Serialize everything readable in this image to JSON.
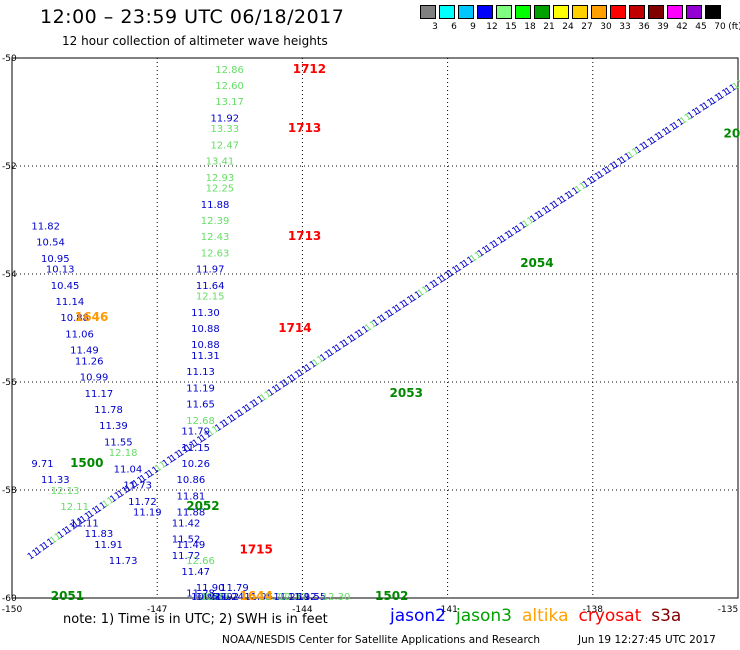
{
  "header": {
    "title": "12:00  – 23:59 UTC 06/18/2017",
    "subtitle": "12 hour collection of altimeter wave heights"
  },
  "legend": {
    "unit": "(ft)",
    "bins": [
      {
        "label": "3",
        "color": "#808080"
      },
      {
        "label": "6",
        "color": "#00ffff"
      },
      {
        "label": "9",
        "color": "#00c8ff"
      },
      {
        "label": "12",
        "color": "#0000ff"
      },
      {
        "label": "15",
        "color": "#80ff80"
      },
      {
        "label": "18",
        "color": "#00ff00"
      },
      {
        "label": "21",
        "color": "#00a000"
      },
      {
        "label": "24",
        "color": "#ffff00"
      },
      {
        "label": "27",
        "color": "#ffd000"
      },
      {
        "label": "30",
        "color": "#ffa000"
      },
      {
        "label": "33",
        "color": "#ff0000"
      },
      {
        "label": "36",
        "color": "#c00000"
      },
      {
        "label": "39",
        "color": "#800000"
      },
      {
        "label": "42",
        "color": "#ff00ff"
      },
      {
        "label": "45",
        "color": "#9400d3"
      },
      {
        "label": "70",
        "color": "#000000"
      }
    ]
  },
  "footer": {
    "note": "note: 1) Time is in UTC; 2) SWH is in feet",
    "satellites": [
      {
        "name": "jason2",
        "color": "#0000ff"
      },
      {
        "name": "jason3",
        "color": "#00a000"
      },
      {
        "name": "altika",
        "color": "#ffa000"
      },
      {
        "name": "cryosat",
        "color": "#ff0000"
      },
      {
        "name": "s3a",
        "color": "#800000"
      }
    ],
    "credit": "NOAA/NESDIS Center for Satellite Applications and Research",
    "timestamp": "Jun 19 12:27:45 UTC 2017"
  },
  "colors": {
    "jason2": "#0000cc",
    "jason3_light": "#66dd66",
    "jason3_time": "#008800",
    "cryosat": "#ff0000",
    "altika": "#ff9900"
  },
  "chart_data": {
    "type": "scatter",
    "xlim": [
      -150,
      -135
    ],
    "ylim": [
      -60,
      -50
    ],
    "x_ticks": [
      "-150",
      "-147",
      "-144",
      "-141",
      "-138",
      "-135"
    ],
    "y_ticks": [
      "-50",
      "-52",
      "-54",
      "-56",
      "-58",
      "-60"
    ],
    "grid": true,
    "tracks": [
      {
        "satellite": "cryosat",
        "color": "#ff0000",
        "times": [
          {
            "label": "1712",
            "x": -144.2,
            "y": -50.2
          },
          {
            "label": "1713",
            "x": -144.3,
            "y": -51.3
          },
          {
            "label": "1713",
            "x": -144.3,
            "y": -53.3
          },
          {
            "label": "1714",
            "x": -144.5,
            "y": -55.0
          },
          {
            "label": "1715",
            "x": -145.3,
            "y": -59.1
          }
        ],
        "values": [
          {
            "v": "12.86",
            "x": -145.8,
            "y": -50.2,
            "c": "l"
          },
          {
            "v": "12.60",
            "x": -145.8,
            "y": -50.5,
            "c": "l"
          },
          {
            "v": "13.17",
            "x": -145.8,
            "y": -50.8,
            "c": "l"
          },
          {
            "v": "11.92",
            "x": -145.9,
            "y": -51.1,
            "c": "b"
          },
          {
            "v": "13.33",
            "x": -145.9,
            "y": -51.3,
            "c": "l"
          },
          {
            "v": "12.47",
            "x": -145.9,
            "y": -51.6,
            "c": "l"
          },
          {
            "v": "13.41",
            "x": -146.0,
            "y": -51.9,
            "c": "l"
          },
          {
            "v": "12.93",
            "x": -146.0,
            "y": -52.2,
            "c": "l"
          },
          {
            "v": "12.25",
            "x": -146.0,
            "y": -52.4,
            "c": "l"
          },
          {
            "v": "11.88",
            "x": -146.1,
            "y": -52.7,
            "c": "b"
          },
          {
            "v": "12.39",
            "x": -146.1,
            "y": -53.0,
            "c": "l"
          },
          {
            "v": "12.43",
            "x": -146.1,
            "y": -53.3,
            "c": "l"
          },
          {
            "v": "12.63",
            "x": -146.1,
            "y": -53.6,
            "c": "l"
          },
          {
            "v": "11.97",
            "x": -146.2,
            "y": -53.9,
            "c": "b"
          },
          {
            "v": "11.64",
            "x": -146.2,
            "y": -54.2,
            "c": "b"
          },
          {
            "v": "12.15",
            "x": -146.2,
            "y": -54.4,
            "c": "l"
          },
          {
            "v": "11.30",
            "x": -146.3,
            "y": -54.7,
            "c": "b"
          },
          {
            "v": "10.88",
            "x": -146.3,
            "y": -55.0,
            "c": "b"
          },
          {
            "v": "10.88",
            "x": -146.3,
            "y": -55.3,
            "c": "b"
          },
          {
            "v": "11.31",
            "x": -146.3,
            "y": -55.5,
            "c": "b"
          },
          {
            "v": "11.13",
            "x": -146.4,
            "y": -55.8,
            "c": "b"
          },
          {
            "v": "11.19",
            "x": -146.4,
            "y": -56.1,
            "c": "b"
          },
          {
            "v": "11.65",
            "x": -146.4,
            "y": -56.4,
            "c": "b"
          },
          {
            "v": "12.68",
            "x": -146.4,
            "y": -56.7,
            "c": "l"
          },
          {
            "v": "11.79",
            "x": -146.5,
            "y": -56.9,
            "c": "b"
          },
          {
            "v": "11.15",
            "x": -146.5,
            "y": -57.2,
            "c": "b"
          },
          {
            "v": "10.26",
            "x": -146.5,
            "y": -57.5,
            "c": "b"
          },
          {
            "v": "10.86",
            "x": -146.6,
            "y": -57.8,
            "c": "b"
          },
          {
            "v": "11.81",
            "x": -146.6,
            "y": -58.1,
            "c": "b"
          },
          {
            "v": "11.88",
            "x": -146.6,
            "y": -58.4,
            "c": "b"
          },
          {
            "v": "11.42",
            "x": -146.7,
            "y": -58.6,
            "c": "b"
          },
          {
            "v": "11.52",
            "x": -146.7,
            "y": -58.9,
            "c": "b"
          },
          {
            "v": "11.72",
            "x": -146.7,
            "y": -59.2,
            "c": "b"
          }
        ]
      },
      {
        "satellite": "jason2",
        "color": "#0000ff",
        "values": [
          {
            "v": "11.82",
            "x": -149.6,
            "y": -53.1,
            "c": "b"
          },
          {
            "v": "10.54",
            "x": -149.5,
            "y": -53.4,
            "c": "b"
          },
          {
            "v": "10.95",
            "x": -149.4,
            "y": -53.7,
            "c": "b"
          },
          {
            "v": "10.13",
            "x": -149.3,
            "y": -53.9,
            "c": "b"
          },
          {
            "v": "10.45",
            "x": -149.2,
            "y": -54.2,
            "c": "b"
          },
          {
            "v": "11.14",
            "x": -149.1,
            "y": -54.5,
            "c": "b"
          },
          {
            "v": "10.88",
            "x": -149.0,
            "y": -54.8,
            "c": "b"
          },
          {
            "v": "11.06",
            "x": -148.9,
            "y": -55.1,
            "c": "b"
          },
          {
            "v": "11.49",
            "x": -148.8,
            "y": -55.4,
            "c": "b"
          },
          {
            "v": "11.26",
            "x": -148.7,
            "y": -55.6,
            "c": "b"
          },
          {
            "v": "10.99",
            "x": -148.6,
            "y": -55.9,
            "c": "b"
          },
          {
            "v": "11.17",
            "x": -148.5,
            "y": -56.2,
            "c": "b"
          },
          {
            "v": "11.78",
            "x": -148.3,
            "y": -56.5,
            "c": "b"
          },
          {
            "v": "11.39",
            "x": -148.2,
            "y": -56.8,
            "c": "b"
          },
          {
            "v": "11.55",
            "x": -148.1,
            "y": -57.1,
            "c": "b"
          },
          {
            "v": "12.18",
            "x": -148.0,
            "y": -57.3,
            "c": "l"
          },
          {
            "v": "11.04",
            "x": -147.9,
            "y": -57.6,
            "c": "b"
          },
          {
            "v": "11.73",
            "x": -147.7,
            "y": -57.9,
            "c": "b"
          },
          {
            "v": "11.72",
            "x": -147.6,
            "y": -58.2,
            "c": "b"
          },
          {
            "v": "11.19",
            "x": -147.5,
            "y": -58.4,
            "c": "b"
          }
        ],
        "times": [
          {
            "label": "1646",
            "x": -148.7,
            "y": -54.8,
            "c": "o"
          }
        ]
      },
      {
        "satellite": "jason3",
        "color": "#00a000",
        "values": [
          {
            "v": "9.71",
            "x": -149.6,
            "y": -57.5,
            "c": "b"
          },
          {
            "v": "11.33",
            "x": -149.4,
            "y": -57.8,
            "c": "b"
          },
          {
            "v": "12.13",
            "x": -149.2,
            "y": -58.0,
            "c": "l"
          },
          {
            "v": "12.11",
            "x": -149.0,
            "y": -58.3,
            "c": "l"
          },
          {
            "v": "11.11",
            "x": -148.8,
            "y": -58.6,
            "c": "b"
          },
          {
            "v": "11.83",
            "x": -148.5,
            "y": -58.8,
            "c": "b"
          },
          {
            "v": "11.91",
            "x": -148.3,
            "y": -59.0,
            "c": "b"
          },
          {
            "v": "11.73",
            "x": -148.0,
            "y": -59.3,
            "c": "b"
          }
        ],
        "times": [
          {
            "label": "1500",
            "x": -148.8,
            "y": -57.5,
            "c": "t"
          }
        ]
      },
      {
        "satellite": "jason2-lower",
        "color": "#0000ff",
        "values": [
          {
            "v": "11.49",
            "x": -146.6,
            "y": -59.0,
            "c": "b"
          },
          {
            "v": "12.66",
            "x": -146.4,
            "y": -59.3,
            "c": "l"
          },
          {
            "v": "11.47",
            "x": -146.5,
            "y": -59.5,
            "c": "b"
          },
          {
            "v": "11.90",
            "x": -146.2,
            "y": -59.8,
            "c": "b"
          },
          {
            "v": "11.79",
            "x": -145.7,
            "y": -59.8,
            "c": "b"
          },
          {
            "v": "11.95",
            "x": -145.2,
            "y": -60.0,
            "c": "b"
          },
          {
            "v": "12.22",
            "x": -144.9,
            "y": -60.2,
            "c": "l"
          },
          {
            "v": "11.25",
            "x": -144.6,
            "y": -60.3,
            "c": "b"
          },
          {
            "v": "12.33",
            "x": -144.5,
            "y": -60.6,
            "c": "l"
          },
          {
            "v": "11.92",
            "x": -144.3,
            "y": -60.8,
            "c": "b"
          },
          {
            "v": "11.55",
            "x": -144.1,
            "y": -61.0,
            "c": "b"
          },
          {
            "v": "12.30",
            "x": -143.6,
            "y": -61.3,
            "c": "l"
          },
          {
            "v": "11.28",
            "x": -146.4,
            "y": -59.9,
            "c": "b"
          },
          {
            "v": "10.92",
            "x": -146.3,
            "y": -60.1,
            "c": "b"
          },
          {
            "v": "12.22",
            "x": -146.2,
            "y": -60.4,
            "c": "l"
          },
          {
            "v": "11.80",
            "x": -146.1,
            "y": -60.7,
            "c": "b"
          },
          {
            "v": "11.55",
            "x": -146.2,
            "y": -61.0,
            "c": "b"
          },
          {
            "v": "10.92",
            "x": -145.9,
            "y": -61.0,
            "c": "b"
          },
          {
            "v": "12.37",
            "x": -146.1,
            "y": -61.3,
            "c": "l"
          },
          {
            "v": "11.24",
            "x": -145.8,
            "y": -61.3,
            "c": "b"
          }
        ],
        "times": [
          {
            "label": "1644",
            "x": -145.3,
            "y": -61.3,
            "c": "o"
          },
          {
            "label": "1502",
            "x": -142.5,
            "y": -61.3,
            "c": "t"
          }
        ]
      },
      {
        "satellite": "jason2-diagonal",
        "color": "#0000ff",
        "times": [
          {
            "label": "2051",
            "x": -149.2,
            "y": -60.2,
            "c": "t"
          },
          {
            "label": "2052",
            "x": -146.4,
            "y": -58.3,
            "c": "t"
          },
          {
            "label": "2053",
            "x": -142.2,
            "y": -56.2,
            "c": "t"
          },
          {
            "label": "2054",
            "x": -139.5,
            "y": -53.8,
            "c": "t"
          },
          {
            "label": "20",
            "x": -135.3,
            "y": -51.4,
            "c": "t"
          }
        ]
      }
    ]
  }
}
